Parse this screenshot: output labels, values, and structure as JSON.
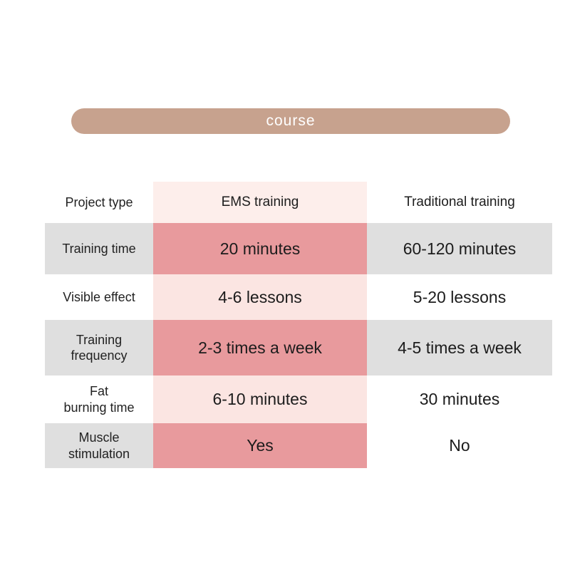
{
  "banner": {
    "label": "course"
  },
  "colors": {
    "banner": "#c7a28e",
    "pink_strong": "#e89a9d",
    "pink_light": "#fbe5e2",
    "pink_faint": "#fdeeeb",
    "gray": "#dfdfdf"
  },
  "chart_data": {
    "type": "table",
    "title": "course",
    "columns": [
      "Project type",
      "EMS training",
      "Traditional training"
    ],
    "rows": [
      {
        "label": "Project type",
        "ems": "EMS training",
        "traditional": "Traditional training"
      },
      {
        "label": "Training time",
        "ems": "20 minutes",
        "traditional": "60-120 minutes"
      },
      {
        "label": "Visible effect",
        "ems": "4-6 lessons",
        "traditional": "5-20 lessons"
      },
      {
        "label": "Training\nfrequency",
        "ems": "2-3 times a week",
        "traditional": "4-5 times a week"
      },
      {
        "label": "Fat\nburning time",
        "ems": "6-10 minutes",
        "traditional": "30 minutes"
      },
      {
        "label": "Muscle\nstimulation",
        "ems": "Yes",
        "traditional": "No"
      }
    ]
  }
}
